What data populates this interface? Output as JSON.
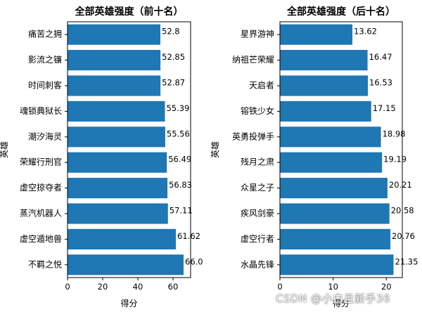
{
  "chart_data": [
    {
      "type": "bar",
      "orientation": "horizontal",
      "title": "全部英雄强度（前十名）",
      "xlabel": "得分",
      "ylabel": "英雄",
      "xlim": [
        0,
        70
      ],
      "xticks": [
        0,
        20,
        40,
        60
      ],
      "categories": [
        "不羁之悦",
        "虚空遁地兽",
        "蒸汽机器人",
        "虚空掠夺者",
        "荣耀行刑官",
        "潮汐海灵",
        "魂锁典狱长",
        "时间刺客",
        "影流之镰",
        "痛苦之拥"
      ],
      "values": [
        66.0,
        61.62,
        57.11,
        56.83,
        56.49,
        55.56,
        55.39,
        52.87,
        52.85,
        52.8
      ],
      "value_labels": [
        "66.0",
        "61.62",
        "57.11",
        "56.83",
        "56.49",
        "55.56",
        "55.39",
        "52.87",
        "52.85",
        "52.8"
      ],
      "bar_color": "#1f77b4",
      "grid": false
    },
    {
      "type": "bar",
      "orientation": "horizontal",
      "title": "全部英雄强度（后十名）",
      "xlabel": "得分",
      "ylabel": "英雄",
      "xlim": [
        0,
        23
      ],
      "xticks": [
        0,
        10,
        20
      ],
      "categories": [
        "水晶先锋",
        "虚空行者",
        "疾风剑豪",
        "众星之子",
        "残月之肃",
        "英勇投弹手",
        "镕铁少女",
        "天启者",
        "纳祖芒荣耀",
        "星界游神"
      ],
      "values": [
        21.35,
        20.76,
        20.58,
        20.21,
        19.19,
        18.98,
        17.15,
        16.53,
        16.47,
        13.62
      ],
      "value_labels": [
        "21.35",
        "20.76",
        "20.58",
        "20.21",
        "19.19",
        "18.98",
        "17.15",
        "16.53",
        "16.47",
        "13.62"
      ],
      "bar_color": "#1f77b4",
      "grid": false
    }
  ],
  "watermark": "CSDN @小白且新手36"
}
